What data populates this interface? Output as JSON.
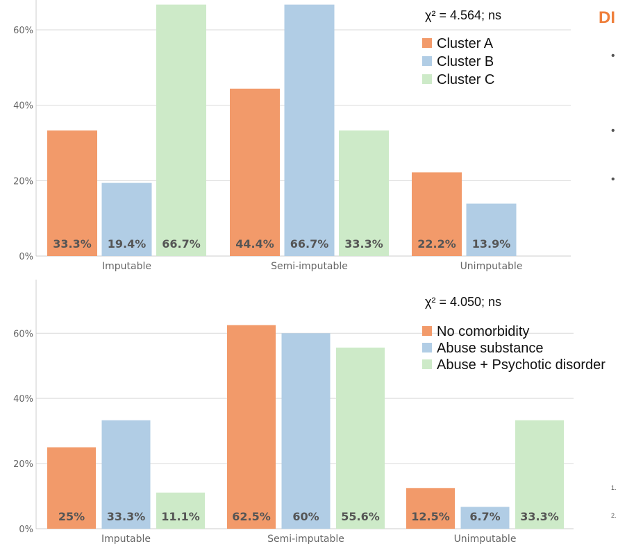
{
  "side_panel": {
    "title": "DI",
    "bullets": [
      "•",
      "•",
      "•"
    ],
    "refs": [
      "1.",
      "2."
    ]
  },
  "colors": {
    "orange": "#f29a6a",
    "blue": "#b1cde5",
    "green": "#cdeac8",
    "axis": "#cccccc",
    "label": "#555555"
  },
  "chart_data": [
    {
      "type": "bar",
      "title": "",
      "stat": "χ² = 4.564; ns",
      "categories": [
        "Imputable",
        "Semi-imputable",
        "Unimputable"
      ],
      "ylim": [
        0,
        0.67
      ],
      "yticks": [
        "0%",
        "20%",
        "40%",
        "60%"
      ],
      "grid": true,
      "legend_position": "top-right",
      "series": [
        {
          "name": "Cluster A",
          "color": "#f29a6a",
          "values": [
            0.333,
            0.444,
            0.222
          ],
          "labels": [
            "33.3%",
            "44.4%",
            "22.2%"
          ]
        },
        {
          "name": "Cluster B",
          "color": "#b1cde5",
          "values": [
            0.194,
            0.667,
            0.139
          ],
          "labels": [
            "19.4%",
            "66.7%",
            "13.9%"
          ]
        },
        {
          "name": "Cluster C",
          "color": "#cdeac8",
          "values": [
            0.667,
            0.333,
            0
          ],
          "labels": [
            "66.7%",
            "33.3%",
            ""
          ]
        }
      ]
    },
    {
      "type": "bar",
      "title": "",
      "stat": "χ² = 4.050; ns",
      "categories": [
        "Imputable",
        "Semi-imputable",
        "Unimputable"
      ],
      "ylim": [
        0,
        0.69
      ],
      "yticks": [
        "0%",
        "20%",
        "40%",
        "60%"
      ],
      "grid": true,
      "legend_position": "top-right",
      "series": [
        {
          "name": "No comorbidity",
          "color": "#f29a6a",
          "values": [
            0.25,
            0.625,
            0.125
          ],
          "labels": [
            "25%",
            "62.5%",
            "12.5%"
          ]
        },
        {
          "name": "Abuse substance",
          "color": "#b1cde5",
          "values": [
            0.333,
            0.6,
            0.067
          ],
          "labels": [
            "33.3%",
            "60%",
            "6.7%"
          ]
        },
        {
          "name": "Abuse + Psychotic disorder",
          "color": "#cdeac8",
          "values": [
            0.111,
            0.556,
            0.333
          ],
          "labels": [
            "11.1%",
            "55.6%",
            "33.3%"
          ]
        }
      ]
    }
  ]
}
